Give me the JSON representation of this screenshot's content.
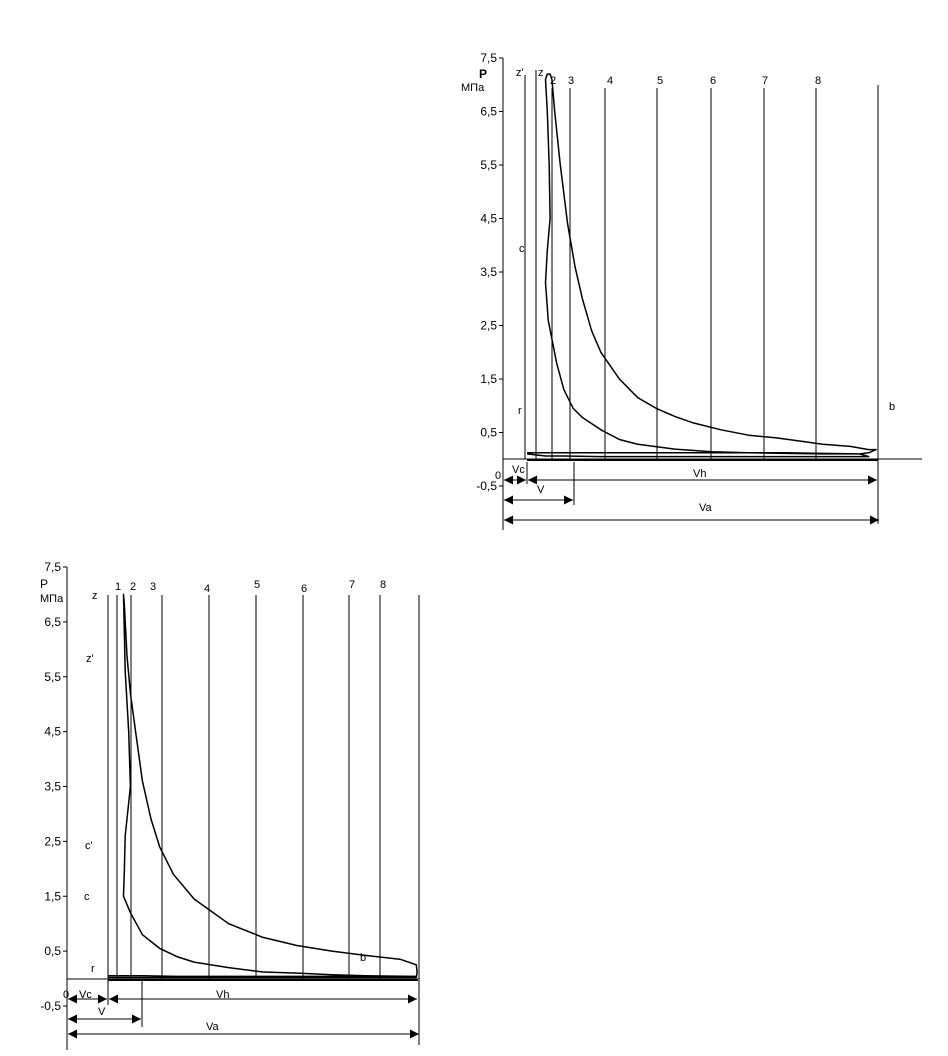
{
  "chart_data": [
    {
      "type": "line",
      "y_axis_label": "P",
      "y_axis_unit": "МПа",
      "y_ticks": [
        7.5,
        6.5,
        5.5,
        4.5,
        3.5,
        2.5,
        1.5,
        0.5,
        -0.5
      ],
      "y_tick_labels": [
        "7,5",
        "6,5",
        "5,5",
        "4,5",
        "3,5",
        "2,5",
        "1,5",
        "0,5",
        "-0,5"
      ],
      "ylim": [
        -0.5,
        7.5
      ],
      "origin_label": "0",
      "grid": false,
      "legend": false,
      "vertical_line_labels": [
        "z'",
        "z",
        "2",
        "3",
        "4",
        "5",
        "6",
        "7",
        "8"
      ],
      "point_labels": [
        "c",
        "r",
        "b"
      ],
      "dimension_labels": [
        "Vc",
        "V",
        "Vh",
        "Va"
      ],
      "series": [
        {
          "values": [
            [
              0.0,
              0.12
            ],
            [
              1.0,
              0.12
            ],
            [
              2.0,
              0.12
            ],
            [
              3.0,
              0.12
            ],
            [
              4.0,
              0.12
            ],
            [
              6.0,
              0.12
            ],
            [
              8.0,
              0.12
            ],
            [
              10.0,
              0.12
            ],
            [
              12.0,
              0.12
            ],
            [
              14.0,
              0.12
            ],
            [
              16.0,
              0.11
            ],
            [
              18.0,
              0.1
            ],
            [
              18.5,
              0.12
            ],
            [
              18.9,
              0.18
            ],
            [
              18.5,
              0.18
            ],
            [
              17.5,
              0.24
            ],
            [
              16.0,
              0.28
            ],
            [
              15.0,
              0.33
            ],
            [
              13.5,
              0.4
            ],
            [
              12.0,
              0.45
            ],
            [
              10.5,
              0.55
            ],
            [
              9.0,
              0.68
            ],
            [
              8.0,
              0.8
            ],
            [
              7.0,
              0.95
            ],
            [
              6.0,
              1.15
            ],
            [
              5.0,
              1.5
            ],
            [
              4.0,
              2.0
            ],
            [
              3.5,
              2.4
            ],
            [
              3.0,
              3.0
            ],
            [
              2.6,
              3.6
            ],
            [
              2.2,
              4.4
            ],
            [
              1.8,
              5.5
            ],
            [
              1.5,
              6.5
            ],
            [
              1.35,
              7.1
            ],
            [
              1.25,
              7.2
            ],
            [
              1.1,
              7.2
            ],
            [
              1.0,
              7.1
            ],
            [
              1.1,
              6.5
            ],
            [
              1.2,
              5.5
            ],
            [
              1.25,
              4.5
            ],
            [
              1.1,
              3.9
            ],
            [
              1.0,
              3.3
            ],
            [
              1.15,
              2.6
            ],
            [
              1.6,
              1.8
            ],
            [
              2.0,
              1.3
            ],
            [
              2.5,
              0.95
            ],
            [
              3.0,
              0.78
            ],
            [
              4.0,
              0.55
            ],
            [
              5.0,
              0.37
            ],
            [
              6.0,
              0.28
            ],
            [
              8.0,
              0.19
            ],
            [
              10.0,
              0.14
            ],
            [
              12.0,
              0.12
            ],
            [
              14.0,
              0.11
            ],
            [
              16.0,
              0.1
            ],
            [
              18.0,
              0.1
            ],
            [
              18.5,
              0.05
            ],
            [
              16.0,
              0.05
            ],
            [
              12.0,
              0.05
            ],
            [
              8.0,
              0.05
            ],
            [
              4.0,
              0.05
            ],
            [
              2.0,
              0.06
            ],
            [
              1.0,
              0.06
            ],
            [
              0.0,
              0.1
            ]
          ]
        }
      ]
    },
    {
      "type": "line",
      "y_axis_label": "P",
      "y_axis_unit": "МПа",
      "y_ticks": [
        7.5,
        6.5,
        5.5,
        4.5,
        3.5,
        2.5,
        1.5,
        0.5,
        -0.5
      ],
      "y_tick_labels": [
        "7,5",
        "6,5",
        "5,5",
        "4,5",
        "3,5",
        "2,5",
        "1,5",
        "0,5",
        "-0,5"
      ],
      "ylim": [
        -0.5,
        7.5
      ],
      "origin_label": "0",
      "grid": false,
      "legend": false,
      "vertical_line_labels": [
        "z",
        "1",
        "2",
        "3",
        "4",
        "5",
        "6",
        "7",
        "8"
      ],
      "point_labels": [
        "z'",
        "c'",
        "c",
        "r",
        "b"
      ],
      "dimension_labels": [
        "Vc",
        "V",
        "Vh",
        "Va"
      ],
      "series": [
        {
          "values": [
            [
              0.0,
              0.02
            ],
            [
              4.0,
              0.02
            ],
            [
              8.0,
              0.02
            ],
            [
              12.0,
              0.02
            ],
            [
              16.0,
              0.02
            ],
            [
              17.9,
              0.02
            ],
            [
              17.95,
              0.12
            ],
            [
              17.9,
              0.25
            ],
            [
              17.0,
              0.35
            ],
            [
              15.0,
              0.42
            ],
            [
              13.0,
              0.5
            ],
            [
              11.0,
              0.6
            ],
            [
              9.0,
              0.75
            ],
            [
              7.0,
              1.0
            ],
            [
              5.0,
              1.45
            ],
            [
              3.8,
              1.9
            ],
            [
              3.0,
              2.4
            ],
            [
              2.5,
              2.9
            ],
            [
              2.0,
              3.6
            ],
            [
              1.6,
              4.5
            ],
            [
              1.3,
              5.2
            ],
            [
              1.1,
              5.9
            ],
            [
              1.05,
              6.2
            ],
            [
              1.0,
              6.5
            ],
            [
              0.95,
              6.8
            ],
            [
              0.9,
              7.0
            ],
            [
              1.0,
              5.6
            ],
            [
              1.2,
              4.5
            ],
            [
              1.3,
              3.5
            ],
            [
              1.0,
              2.6
            ],
            [
              0.95,
              2.0
            ],
            [
              0.9,
              1.5
            ],
            [
              1.3,
              1.2
            ],
            [
              2.0,
              0.8
            ],
            [
              3.0,
              0.55
            ],
            [
              4.0,
              0.4
            ],
            [
              5.0,
              0.3
            ],
            [
              7.0,
              0.2
            ],
            [
              9.0,
              0.12
            ],
            [
              11.0,
              0.1
            ],
            [
              13.0,
              0.07
            ],
            [
              15.0,
              0.05
            ],
            [
              17.9,
              0.04
            ],
            [
              12.0,
              0.04
            ],
            [
              8.0,
              0.04
            ],
            [
              4.0,
              0.04
            ],
            [
              2.0,
              0.05
            ],
            [
              1.0,
              0.05
            ],
            [
              0.0,
              0.05
            ]
          ]
        }
      ]
    }
  ]
}
